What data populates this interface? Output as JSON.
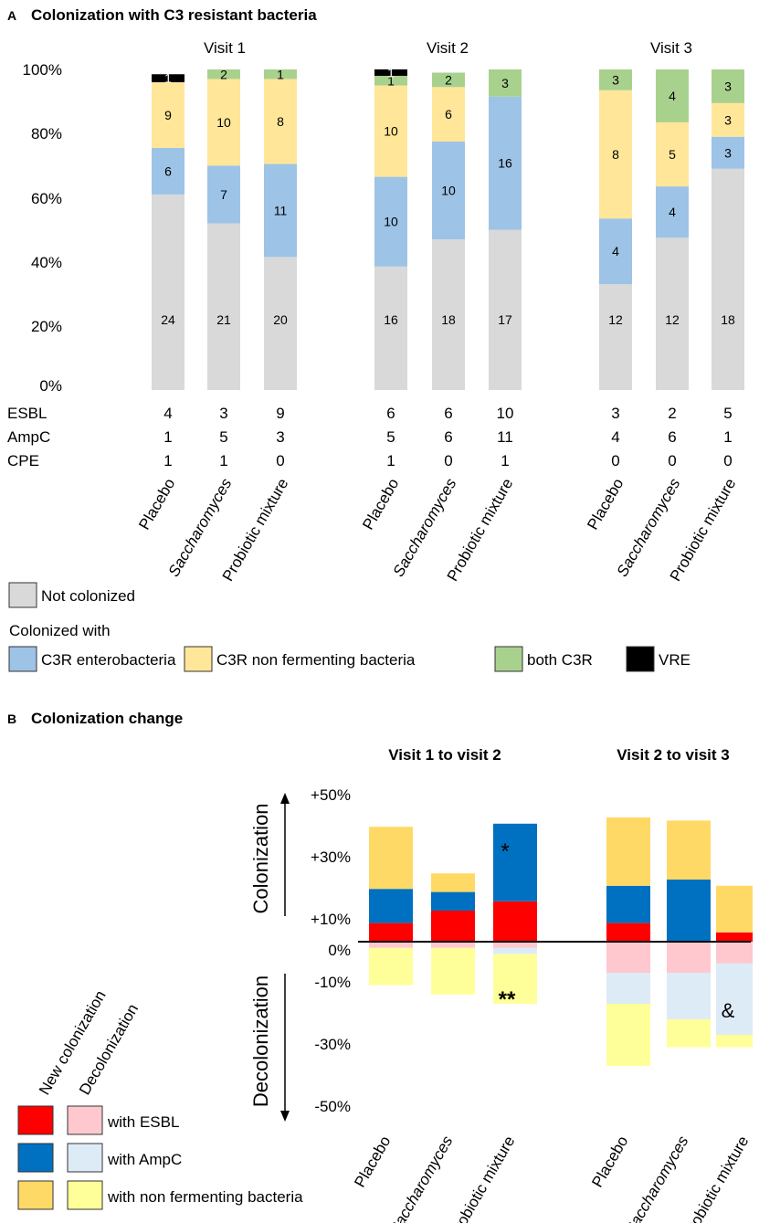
{
  "panel_a": {
    "letter": "A",
    "title": "Colonization with C3 resistant bacteria",
    "visits": [
      "Visit 1",
      "Visit 2",
      "Visit 3"
    ],
    "groups": [
      "Placebo",
      "Saccharomyces",
      "Probiotic mixture"
    ],
    "y_ticks": [
      "0%",
      "20%",
      "40%",
      "60%",
      "80%",
      "100%"
    ],
    "row_labels": [
      "ESBL",
      "AmpC",
      "CPE"
    ],
    "counts": {
      "ESBL": [
        [
          "4",
          "3",
          "9"
        ],
        [
          "6",
          "6",
          "10"
        ],
        [
          "3",
          "2",
          "5"
        ]
      ],
      "AmpC": [
        [
          "1",
          "5",
          "3"
        ],
        [
          "5",
          "6",
          "11"
        ],
        [
          "4",
          "6",
          "1"
        ]
      ],
      "CPE": [
        [
          "1",
          "1",
          "0"
        ],
        [
          "1",
          "0",
          "1"
        ],
        [
          "0",
          "0",
          "0"
        ]
      ]
    },
    "legend": {
      "not_colonized": "Not colonized",
      "colonized_with": "Colonized with",
      "items": [
        "C3R enterobacteria",
        "C3R non fermenting bacteria",
        "both C3R",
        "VRE"
      ]
    }
  },
  "panel_b": {
    "letter": "B",
    "title": "Colonization change",
    "periods": [
      "Visit 1 to visit 2",
      "Visit 2 to visit 3"
    ],
    "groups": [
      "Placebo",
      "Saccharomyces",
      "Probiotic mixture"
    ],
    "y_ticks": [
      "+50%",
      "+30%",
      "+10%",
      "0%",
      "-10%",
      "-30%",
      "-50%"
    ],
    "axis_up_label": "Colonization",
    "axis_down_label": "Decolonization",
    "annotations": [
      "*",
      "**",
      "&"
    ],
    "legend": {
      "col_new": "New colonization",
      "col_decol": "Decolonization",
      "rows": [
        "with ESBL",
        "with AmpC",
        "with non fermenting bacteria"
      ]
    }
  },
  "colors": {
    "not_colonized": "#d9d9d9",
    "enterobacteria": "#9dc3e6",
    "non_fermenting": "#ffe699",
    "both": "#a9d18e",
    "vre": "#000000",
    "new_esbl": "#ff0000",
    "new_ampc": "#0070c0",
    "new_nf": "#ffd966",
    "decol_esbl": "#ffc7ce",
    "decol_ampc": "#ddebf7",
    "decol_nf": "#ffff99"
  },
  "chart_data": [
    {
      "type": "bar",
      "stacked": true,
      "title": "Colonization with C3 resistant bacteria",
      "ylim": [
        0,
        100
      ],
      "ylabel": "",
      "categories": [
        "Visit 1 Placebo",
        "Visit 1 Saccharomyces",
        "Visit 1 Probiotic mixture",
        "Visit 2 Placebo",
        "Visit 2 Saccharomyces",
        "Visit 2 Probiotic mixture",
        "Visit 3 Placebo",
        "Visit 3 Saccharomyces",
        "Visit 3 Probiotic mixture"
      ],
      "series": [
        {
          "name": "Not colonized",
          "counts": [
            "24",
            "21",
            "20",
            "16",
            "18",
            "17",
            "12",
            "12",
            "18"
          ],
          "values": [
            61,
            52,
            41.5,
            38.5,
            47,
            50,
            33,
            47.5,
            69
          ]
        },
        {
          "name": "C3R enterobacteria",
          "counts": [
            "6",
            "7",
            "11",
            "10",
            "10",
            "16",
            "4",
            "4",
            "3"
          ],
          "values": [
            14.5,
            18,
            29,
            28,
            30.5,
            41.5,
            20.5,
            16,
            10
          ]
        },
        {
          "name": "C3R non fermenting bacteria",
          "counts": [
            "9",
            "10",
            "8",
            "10",
            "6",
            "",
            "8",
            "5",
            "3"
          ],
          "values": [
            20.5,
            27,
            26.5,
            28.5,
            17,
            0,
            40,
            20,
            10.5
          ]
        },
        {
          "name": "both C3R",
          "counts": [
            "",
            "2",
            "1",
            "1",
            "2",
            "3",
            "3",
            "4",
            "3"
          ],
          "values": [
            0,
            3,
            3,
            3,
            4.5,
            8.5,
            6.5,
            16.5,
            10.5
          ]
        },
        {
          "name": "VRE",
          "counts": [
            "1",
            "",
            "",
            "1",
            "",
            "",
            "",
            "",
            ""
          ],
          "values": [
            2.5,
            0,
            0,
            2,
            0,
            0,
            0,
            0,
            0
          ]
        }
      ]
    },
    {
      "type": "bar",
      "stacked": true,
      "title": "Colonization change",
      "ylim": [
        -50,
        50
      ],
      "ylabel": "",
      "categories": [
        "Visit 1 to visit 2 Placebo",
        "Visit 1 to visit 2 Saccharomyces",
        "Visit 1 to visit 2 Probiotic mixture",
        "Visit 2 to visit 3 Placebo",
        "Visit 2 to visit 3 Saccharomyces",
        "Visit 2 to visit 3 Probiotic mixture"
      ],
      "series": [
        {
          "name": "New colonization with ESBL",
          "values": [
            6,
            10,
            13,
            6,
            0,
            3
          ]
        },
        {
          "name": "New colonization with AmpC",
          "values": [
            11,
            6,
            25,
            12,
            20,
            0
          ]
        },
        {
          "name": "New colonization with non fermenting bacteria",
          "values": [
            20,
            6,
            0,
            22,
            19,
            15
          ]
        },
        {
          "name": "Decolonization with ESBL",
          "values": [
            -2,
            -2,
            -2,
            -10,
            -10,
            -7
          ]
        },
        {
          "name": "Decolonization with AmpC",
          "values": [
            0,
            0,
            -2,
            -10,
            -15,
            -23
          ]
        },
        {
          "name": "Decolonization with non fermenting bacteria",
          "values": [
            -12,
            -15,
            -16,
            -20,
            -9,
            -4
          ]
        }
      ]
    }
  ]
}
